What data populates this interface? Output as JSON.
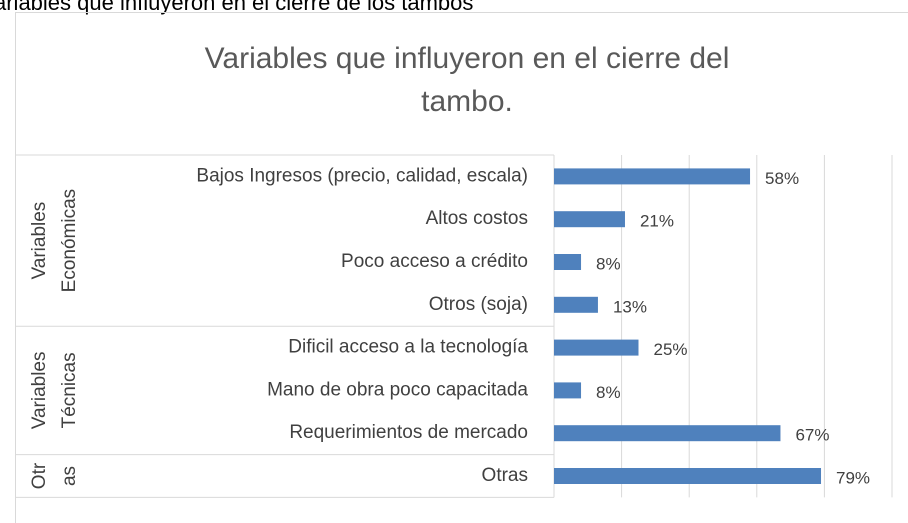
{
  "caption": "ariables que influyeron en el cierre de los tambos",
  "chart_data": {
    "type": "bar",
    "orientation": "horizontal",
    "title": [
      "Variables que influyeron en el cierre del",
      "tambo."
    ],
    "color": "#4f81bd",
    "grid": true,
    "xlim": [
      0,
      100
    ],
    "xticks": [
      0,
      20,
      40,
      60,
      80,
      100
    ],
    "groups": [
      {
        "name": [
          "Variables",
          "Económicas"
        ],
        "categories": [
          "Bajos Ingresos (precio, calidad, escala)",
          "Altos costos",
          "Poco acceso a crédito",
          "Otros (soja)"
        ],
        "values": [
          58,
          21,
          8,
          13
        ],
        "value_labels": [
          "58%",
          "21%",
          "8%",
          "13%"
        ]
      },
      {
        "name": [
          "Variables",
          "Técnicas"
        ],
        "categories": [
          "Dificil acceso a la tecnología",
          "Mano de obra poco capacitada",
          "Requerimientos de mercado"
        ],
        "values": [
          25,
          8,
          67
        ],
        "value_labels": [
          "25%",
          "8%",
          "67%"
        ]
      },
      {
        "name": [
          "Otr",
          "as"
        ],
        "categories": [
          "Otras"
        ],
        "values": [
          79
        ],
        "value_labels": [
          "79%"
        ]
      }
    ]
  }
}
